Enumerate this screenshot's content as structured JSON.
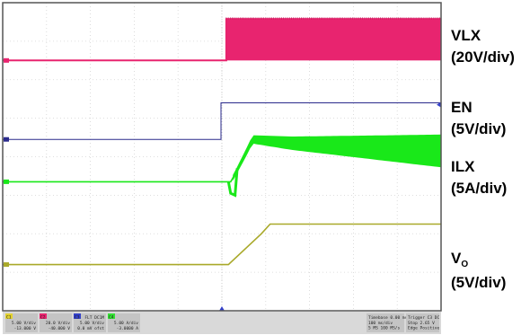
{
  "chart_data": {
    "type": "line",
    "title": "",
    "xlabel": "",
    "ylabel": "",
    "grid": true,
    "grid_divisions": {
      "x": 10,
      "y": 8
    },
    "trigger_time_div": 5.0,
    "series": [
      {
        "name": "VLX",
        "scale": "(20V/div)",
        "color": "#e8246f",
        "baseline_div": 6.5,
        "points": [
          [
            0,
            6.5
          ],
          [
            5.1,
            6.5
          ],
          [
            5.1,
            7.6
          ]
        ],
        "ripple": {
          "from_div": 5.1,
          "to_div": 10,
          "low_div": 6.5,
          "high_div": 7.6
        }
      },
      {
        "name": "EN",
        "scale": "(5V/div)",
        "color": "#2a2a8c",
        "baseline_div": 4.45,
        "points": [
          [
            0,
            4.45
          ],
          [
            4.98,
            4.45
          ],
          [
            4.98,
            5.4
          ],
          [
            10,
            5.4
          ]
        ]
      },
      {
        "name": "ILX",
        "scale": "(5A/div)",
        "color": "#19e819",
        "baseline_div": 3.35,
        "points": [
          [
            0,
            3.35
          ],
          [
            5.2,
            3.35
          ],
          [
            5.3,
            3.55
          ],
          [
            5.55,
            4.1
          ],
          [
            5.7,
            4.45
          ],
          [
            6.6,
            4.35
          ],
          [
            10,
            4.15
          ]
        ],
        "ripple": {
          "from_div": 5.25,
          "to_div": 10,
          "amp_start_div": 0.15,
          "amp_end_div": 0.85
        }
      },
      {
        "name": "V",
        "name_sub": "O",
        "scale": "(5V/div)",
        "color": "#a9a92a",
        "baseline_div": 1.2,
        "points": [
          [
            0,
            1.2
          ],
          [
            5.15,
            1.2
          ],
          [
            5.9,
            2.0
          ],
          [
            6.1,
            2.25
          ],
          [
            10,
            2.25
          ]
        ]
      }
    ]
  },
  "status_bar": {
    "channels": [
      {
        "id": "C1",
        "color": "#e3d230",
        "lines": [
          "",
          "5.00 V/div",
          "-13.000 V"
        ]
      },
      {
        "id": "C2",
        "color": "#e8246f",
        "lines": [
          "",
          "20.0 V/div",
          "-40.000 V"
        ]
      },
      {
        "id": "C3",
        "color": "#3340c8",
        "lines": [
          "FLT DC1M",
          "5.00 V/div",
          "0.0 mV ofst"
        ]
      },
      {
        "id": "C4",
        "color": "#33e033",
        "lines": [
          "",
          "5.00 A/div",
          "-3.0000 A"
        ]
      }
    ],
    "timebase": {
      "label": "Timebase",
      "value": "0.00 ms",
      "lines": [
        "100 ms/div",
        "5 MS  100 MS/s"
      ]
    },
    "trigger": {
      "label": "Trigger",
      "value": "C3 DC",
      "lines": [
        "Stop  2.65 V",
        "Edge  Positive"
      ]
    }
  }
}
